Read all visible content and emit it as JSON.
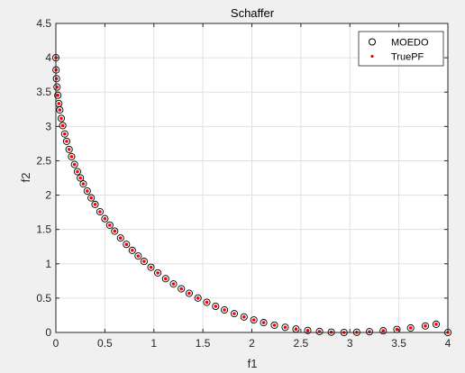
{
  "chart_data": {
    "type": "scatter",
    "title": "Schaffer",
    "xlabel": "f1",
    "ylabel": "f2",
    "xlim": [
      0,
      4
    ],
    "ylim": [
      0,
      4.5
    ],
    "x_ticks": [
      "0",
      "0.5",
      "1",
      "1.5",
      "2",
      "2.5",
      "3",
      "3.5",
      "4"
    ],
    "y_ticks": [
      "0",
      "0.5",
      "1",
      "1.5",
      "2",
      "2.5",
      "3",
      "3.5",
      "4",
      "4.5"
    ],
    "grid": true,
    "legend_position": "top-right",
    "series": [
      {
        "name": "MOEDO",
        "marker": "open-circle",
        "color": "#000000",
        "x": [
          0.0,
          0.002,
          0.006,
          0.012,
          0.02,
          0.03,
          0.04,
          0.055,
          0.07,
          0.09,
          0.11,
          0.135,
          0.16,
          0.19,
          0.22,
          0.25,
          0.28,
          0.32,
          0.36,
          0.4,
          0.45,
          0.5,
          0.55,
          0.6,
          0.66,
          0.72,
          0.78,
          0.84,
          0.9,
          0.97,
          1.04,
          1.12,
          1.2,
          1.28,
          1.36,
          1.45,
          1.54,
          1.63,
          1.72,
          1.82,
          1.92,
          2.02,
          2.12,
          2.23,
          2.34,
          2.45,
          2.57,
          2.69,
          2.81,
          2.94,
          3.07,
          3.2,
          3.34,
          3.48,
          3.62,
          3.77,
          3.88,
          4.0
        ],
        "y": [
          4.0,
          3.823,
          3.696,
          3.574,
          3.454,
          3.333,
          3.24,
          3.117,
          3.012,
          2.891,
          2.783,
          2.665,
          2.56,
          2.446,
          2.342,
          2.25,
          2.163,
          2.059,
          1.96,
          1.865,
          1.758,
          1.657,
          1.563,
          1.475,
          1.375,
          1.283,
          1.196,
          1.113,
          1.035,
          0.949,
          0.867,
          0.783,
          0.706,
          0.636,
          0.57,
          0.501,
          0.439,
          0.381,
          0.328,
          0.274,
          0.226,
          0.182,
          0.143,
          0.106,
          0.075,
          0.05,
          0.029,
          0.014,
          0.004,
          0.0,
          0.003,
          0.011,
          0.025,
          0.044,
          0.066,
          0.095,
          0.12,
          0.0
        ]
      },
      {
        "name": "TruePF",
        "marker": "dot",
        "color": "#ff0000",
        "x": [
          0.0,
          0.002,
          0.006,
          0.012,
          0.02,
          0.03,
          0.04,
          0.055,
          0.07,
          0.09,
          0.11,
          0.135,
          0.16,
          0.19,
          0.22,
          0.25,
          0.28,
          0.32,
          0.36,
          0.4,
          0.45,
          0.5,
          0.55,
          0.6,
          0.66,
          0.72,
          0.78,
          0.84,
          0.9,
          0.97,
          1.04,
          1.12,
          1.2,
          1.28,
          1.36,
          1.45,
          1.54,
          1.63,
          1.72,
          1.82,
          1.92,
          2.02,
          2.12,
          2.23,
          2.34,
          2.45,
          2.57,
          2.69,
          2.81,
          2.94,
          3.07,
          3.2,
          3.34,
          3.48,
          3.62,
          3.77,
          3.88,
          4.0
        ],
        "y": [
          4.0,
          3.823,
          3.696,
          3.574,
          3.454,
          3.333,
          3.24,
          3.117,
          3.012,
          2.891,
          2.783,
          2.665,
          2.56,
          2.446,
          2.342,
          2.25,
          2.163,
          2.059,
          1.96,
          1.865,
          1.758,
          1.657,
          1.563,
          1.475,
          1.375,
          1.283,
          1.196,
          1.113,
          1.035,
          0.949,
          0.867,
          0.783,
          0.706,
          0.636,
          0.57,
          0.501,
          0.439,
          0.381,
          0.328,
          0.274,
          0.226,
          0.182,
          0.143,
          0.106,
          0.075,
          0.05,
          0.029,
          0.014,
          0.004,
          0.0,
          0.003,
          0.011,
          0.025,
          0.044,
          0.066,
          0.095,
          0.12,
          0.0
        ]
      }
    ]
  }
}
